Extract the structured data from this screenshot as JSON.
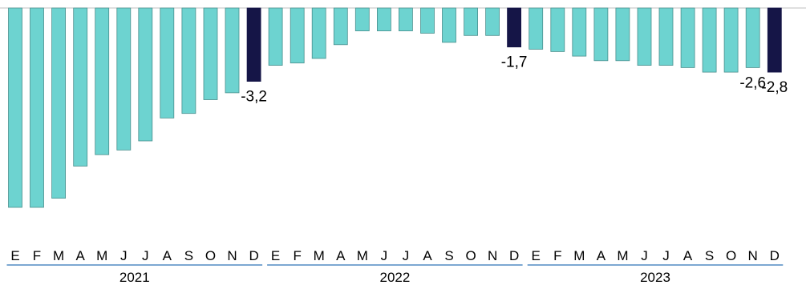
{
  "chart_data": {
    "type": "bar",
    "title": "",
    "xlabel": "",
    "ylabel": "",
    "ylim": [
      -8.7,
      0
    ],
    "grid": false,
    "legend": "none",
    "colors": {
      "normal": "#6dd3d0",
      "highlight": "#151547",
      "stroke": "#4a8f8d",
      "axis": "#2e75b6"
    },
    "groups": [
      {
        "label": "2021",
        "categories": [
          "E",
          "F",
          "M",
          "A",
          "M",
          "J",
          "J",
          "A",
          "S",
          "O",
          "N",
          "D"
        ]
      },
      {
        "label": "2022",
        "categories": [
          "E",
          "F",
          "M",
          "A",
          "M",
          "J",
          "J",
          "A",
          "S",
          "O",
          "N",
          "D"
        ]
      },
      {
        "label": "2023",
        "categories": [
          "E",
          "F",
          "M",
          "A",
          "M",
          "J",
          "J",
          "A",
          "S",
          "O",
          "N",
          "D"
        ]
      }
    ],
    "values": [
      -8.7,
      -8.7,
      -8.3,
      -6.9,
      -6.4,
      -6.2,
      -5.8,
      -4.8,
      -4.6,
      -4.0,
      -3.7,
      -3.2,
      -2.5,
      -2.4,
      -2.2,
      -1.6,
      -1.0,
      -1.0,
      -1.0,
      -1.1,
      -1.5,
      -1.2,
      -1.2,
      -1.7,
      -1.8,
      -1.9,
      -2.1,
      -2.3,
      -2.3,
      -2.5,
      -2.5,
      -2.6,
      -2.8,
      -2.8,
      -2.6,
      -2.8
    ],
    "highlight_indices": [
      11,
      23,
      35
    ],
    "data_labels": [
      {
        "index": 11,
        "text": "-3,2"
      },
      {
        "index": 23,
        "text": "-1,7"
      },
      {
        "index": 34,
        "text": "-2,6"
      },
      {
        "index": 35,
        "text": "-2,8"
      }
    ]
  }
}
